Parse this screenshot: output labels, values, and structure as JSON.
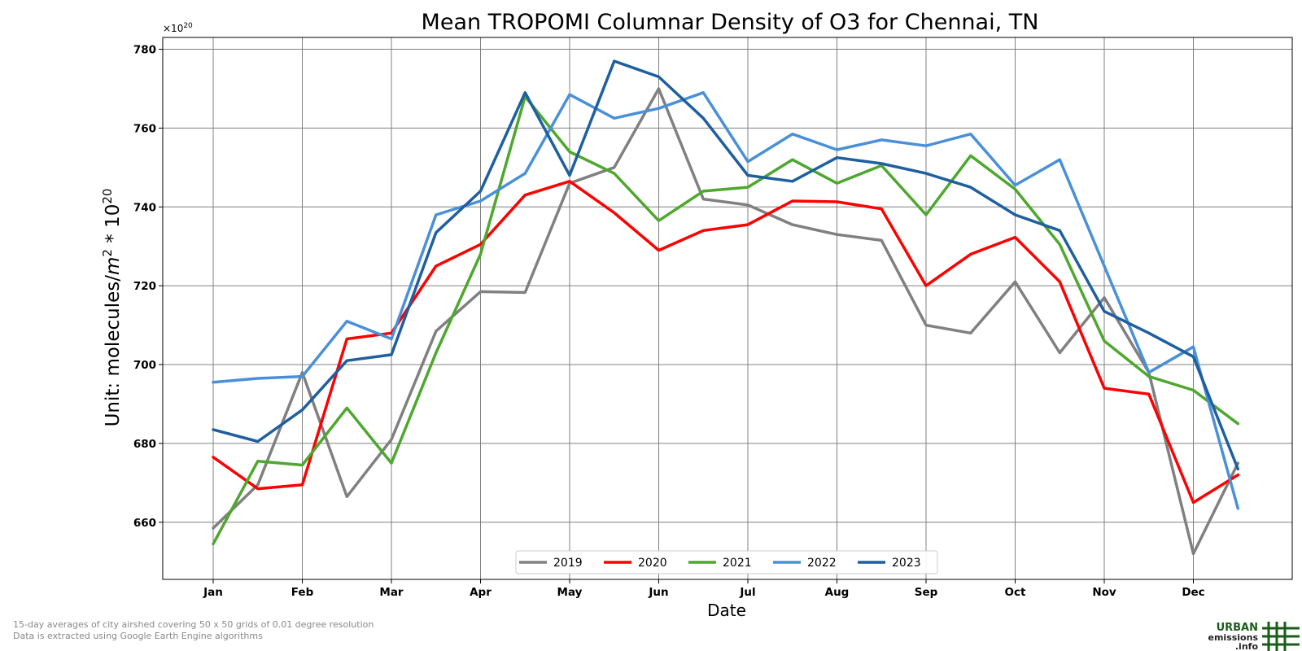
{
  "chart_data": {
    "type": "line",
    "title": "Mean TROPOMI Columnar Density of O3 for Chennai, TN",
    "xlabel": "Date",
    "ylabel_prefix": "Unit: molecules/",
    "ylabel_m": "m",
    "ylabel_m_exp": "2",
    "ylabel_mid": " * 10",
    "ylabel_exp": "20",
    "y_offset_base": "×10",
    "y_offset_exp": "20",
    "ylim": [
      645.5,
      783
    ],
    "y_ticks": [
      660,
      680,
      700,
      720,
      740,
      760,
      780
    ],
    "x_ticks": [
      "Jan",
      "Feb",
      "Mar",
      "Apr",
      "May",
      "Jun",
      "Jul",
      "Aug",
      "Sep",
      "Oct",
      "Nov",
      "Dec"
    ],
    "x_points": [
      "Jan",
      "Jan 15",
      "Feb",
      "Feb 15",
      "Mar",
      "Mar 15",
      "Apr",
      "Apr 15",
      "May",
      "May 15",
      "Jun",
      "Jun 15",
      "Jul",
      "Jul 15",
      "Aug",
      "Aug 15",
      "Sep",
      "Sep 15",
      "Oct",
      "Oct 15",
      "Nov",
      "Nov 15",
      "Dec",
      "Dec 15"
    ],
    "grid": true,
    "legend_position": "bottom-center",
    "series": [
      {
        "name": "2019",
        "color": "#808080",
        "values": [
          658.5,
          669.5,
          698,
          666.5,
          681,
          708.5,
          718.5,
          718.3,
          746,
          750,
          770,
          742,
          740.5,
          735.5,
          733,
          731.5,
          710,
          708,
          721,
          703,
          717,
          698,
          652,
          675
        ]
      },
      {
        "name": "2020",
        "color": "#ff0000",
        "values": [
          676.5,
          668.5,
          669.5,
          706.5,
          708,
          725,
          730.5,
          743,
          746.5,
          738.5,
          729,
          734,
          735.5,
          741.5,
          741.3,
          739.5,
          720,
          728,
          732.3,
          721,
          694,
          692.5,
          665,
          672
        ]
      },
      {
        "name": "2021",
        "color": "#4ea72e",
        "values": [
          654.5,
          675.5,
          674.5,
          689,
          675,
          703,
          728,
          768,
          754,
          748.5,
          736.5,
          744,
          745,
          752,
          746,
          750.5,
          738,
          753,
          744.5,
          730.5,
          706,
          697,
          693.5,
          685
        ]
      },
      {
        "name": "2022",
        "color": "#4a90d9",
        "values": [
          695.5,
          696.5,
          697,
          711,
          706.5,
          738,
          741.5,
          748.5,
          768.5,
          762.5,
          765,
          769,
          751.5,
          758.5,
          754.5,
          757,
          755.5,
          758.5,
          745.5,
          752,
          725,
          698,
          704.5,
          663.5
        ]
      },
      {
        "name": "2023",
        "color": "#1f5f9f",
        "values": [
          683.5,
          680.5,
          688.5,
          701,
          702.5,
          733.5,
          744,
          769,
          748,
          777,
          773,
          762.5,
          748,
          746.5,
          752.5,
          751,
          748.5,
          745,
          738,
          734,
          713.5,
          708,
          702,
          673.5
        ]
      }
    ]
  },
  "footnote": {
    "line1": "15-day averages of city airshed covering 50 x 50 grids of 0.01 degree resolution",
    "line2": "Data is extracted using Google Earth Engine algorithms"
  },
  "logo": {
    "line1": "URBAN",
    "line2": "emissions",
    "line3": ".info"
  }
}
